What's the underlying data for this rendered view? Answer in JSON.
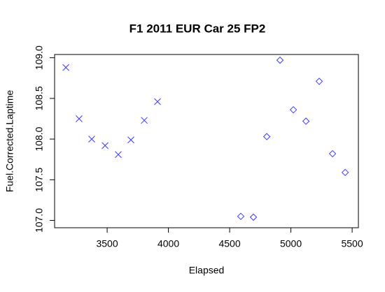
{
  "chart_data": {
    "type": "scatter",
    "title": "F1 2011 EUR Car 25 FP2",
    "x_label": "Elapsed",
    "y_label": "Fuel.Corrected.Laptime",
    "series": [
      {
        "color": "#3a3aff",
        "marker": "x",
        "x": [
          3163,
          3271,
          3374,
          3483,
          3591,
          3694,
          3803,
          3911
        ],
        "values": [
          108.88,
          108.25,
          108.0,
          107.92,
          107.81,
          107.99,
          108.23,
          108.46
        ]
      },
      {
        "color": "#3a3aff",
        "marker": "diamond",
        "x": [
          4591,
          4694,
          4803,
          4911,
          5020,
          5123,
          5231,
          5340,
          5443
        ],
        "values": [
          107.05,
          107.04,
          108.03,
          108.97,
          108.36,
          108.22,
          108.71,
          107.82,
          107.59
        ]
      }
    ],
    "xlim": [
      3071,
      5551
    ],
    "ylim": [
      106.91,
      109.04
    ],
    "xticks": [
      3500,
      4000,
      4500,
      5000,
      5500
    ],
    "yticks": [
      {
        "value": 107,
        "label": "107.0"
      },
      {
        "value": 107.5,
        "label": "107.5"
      },
      {
        "value": 108,
        "label": "108.0"
      },
      {
        "value": 108.5,
        "label": "108.5"
      },
      {
        "value": 109,
        "label": "109.0"
      }
    ]
  }
}
